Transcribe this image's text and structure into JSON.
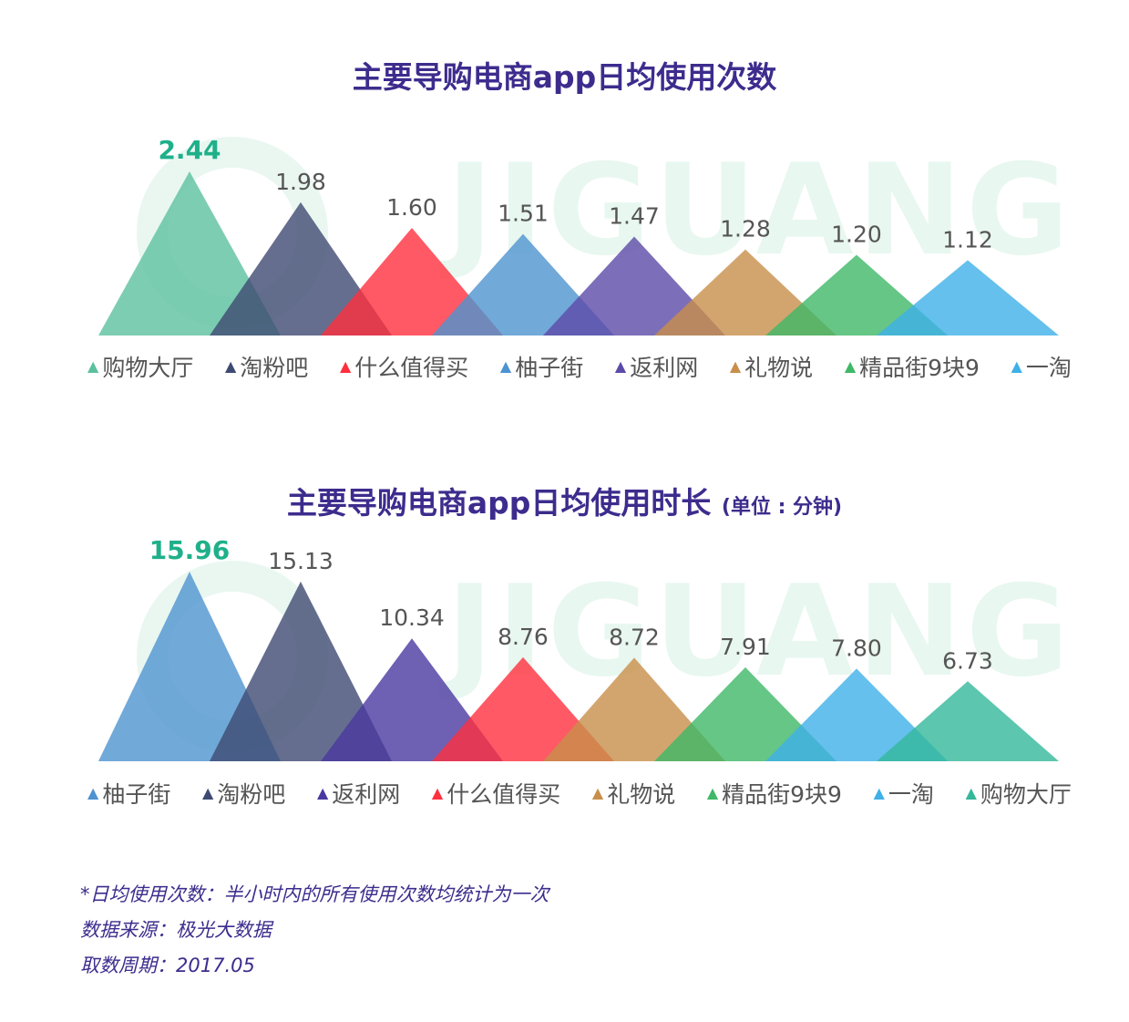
{
  "watermark": {
    "brand": "JIGUANG"
  },
  "charts": [
    {
      "title": "主要导购电商app日均使用次数",
      "unit": ""
    },
    {
      "title": "主要导购电商app日均使用时长",
      "unit": "(单位 : 分钟)"
    }
  ],
  "chart_data": [
    {
      "type": "area",
      "title": "主要导购电商app日均使用次数",
      "categories": [
        "购物大厅",
        "淘粉吧",
        "什么值得买",
        "柚子街",
        "返利网",
        "礼物说",
        "精品街9块9",
        "一淘"
      ],
      "values": [
        2.44,
        1.98,
        1.6,
        1.51,
        1.47,
        1.28,
        1.2,
        1.12
      ],
      "labels": [
        "2.44",
        "1.98",
        "1.60",
        "1.51",
        "1.47",
        "1.28",
        "1.20",
        "1.12"
      ],
      "colors": [
        "#5cc0a0",
        "#3f4a72",
        "#ff2f3e",
        "#4d93d0",
        "#5c4aa8",
        "#c88f4a",
        "#3fb868",
        "#3fb0e8"
      ],
      "highlight_color": "#1fb08a",
      "legend": "bottom"
    },
    {
      "type": "area",
      "title": "主要导购电商app日均使用时长",
      "unit": "(单位 : 分钟)",
      "categories": [
        "柚子街",
        "淘粉吧",
        "返利网",
        "什么值得买",
        "礼物说",
        "精品街9块9",
        "一淘",
        "购物大厅"
      ],
      "values": [
        15.96,
        15.13,
        10.34,
        8.76,
        8.72,
        7.91,
        7.8,
        6.73
      ],
      "labels": [
        "15.96",
        "15.13",
        "10.34",
        "8.76",
        "8.72",
        "7.91",
        "7.80",
        "6.73"
      ],
      "colors": [
        "#4d93d0",
        "#3f4a72",
        "#4a38a0",
        "#ff2f3e",
        "#c88f4a",
        "#3fb868",
        "#3fb0e8",
        "#33b89a"
      ],
      "highlight_color": "#1fb08a",
      "legend": "bottom"
    }
  ],
  "footnotes": [
    "*日均使用次数：半小时内的所有使用次数均统计为一次",
    "数据来源：极光大数据",
    "取数周期：2017.05"
  ]
}
